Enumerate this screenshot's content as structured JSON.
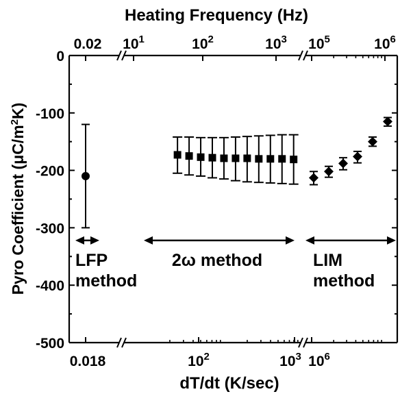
{
  "chart_data": {
    "type": "scatter",
    "top_axis_label": "Heating Frequency (Hz)",
    "bottom_axis_label": "dT/dt (K/sec)",
    "ylabel": "Pyro Coefficient (μC/m²K)",
    "ylim": [
      -500,
      0
    ],
    "ytick_labels": [
      "0",
      "-100",
      "-200",
      "-300",
      "-400",
      "-500"
    ],
    "top_tick_labels": [
      "0.02",
      "10",
      "1",
      "10",
      "2",
      "10",
      "3",
      "10",
      "5",
      "10",
      "6"
    ],
    "bottom_tick_labels": [
      "0.018",
      "10",
      "2",
      "10",
      "3",
      "10",
      "6"
    ],
    "x_axis_segments": [
      "LFP",
      "2ω method",
      "LIM"
    ],
    "annotations": {
      "lfp": [
        "LFP",
        "method"
      ],
      "two_omega": "2ω method",
      "lim": [
        "LIM",
        "method"
      ]
    },
    "series": [
      {
        "segment": "LFP",
        "marker": "circle",
        "x": [
          0.018
        ],
        "y": [
          -210
        ],
        "err_low": [
          -300
        ],
        "err_high": [
          -120
        ]
      },
      {
        "segment": "2ω method",
        "marker": "square",
        "x_log10": [
          1.4,
          1.55,
          1.7,
          1.85,
          2.0,
          2.15,
          2.3,
          2.45,
          2.6,
          2.75,
          2.9
        ],
        "y": [
          -173,
          -175,
          -177,
          -178,
          -179,
          -179,
          -179,
          -180,
          -180,
          -180,
          -181
        ],
        "err_low": [
          -205,
          -208,
          -210,
          -213,
          -215,
          -218,
          -220,
          -221,
          -222,
          -223,
          -224
        ],
        "err_high": [
          -142,
          -142,
          -143,
          -143,
          -143,
          -142,
          -141,
          -140,
          -139,
          -138,
          -138
        ]
      },
      {
        "segment": "LIM",
        "marker": "diamond",
        "y": [
          -213,
          -202,
          -188,
          -176,
          -150,
          -115
        ],
        "err_low": [
          -225,
          -212,
          -199,
          -187,
          -158,
          -123
        ],
        "err_high": [
          -202,
          -193,
          -178,
          -167,
          -142,
          -108
        ]
      }
    ]
  }
}
